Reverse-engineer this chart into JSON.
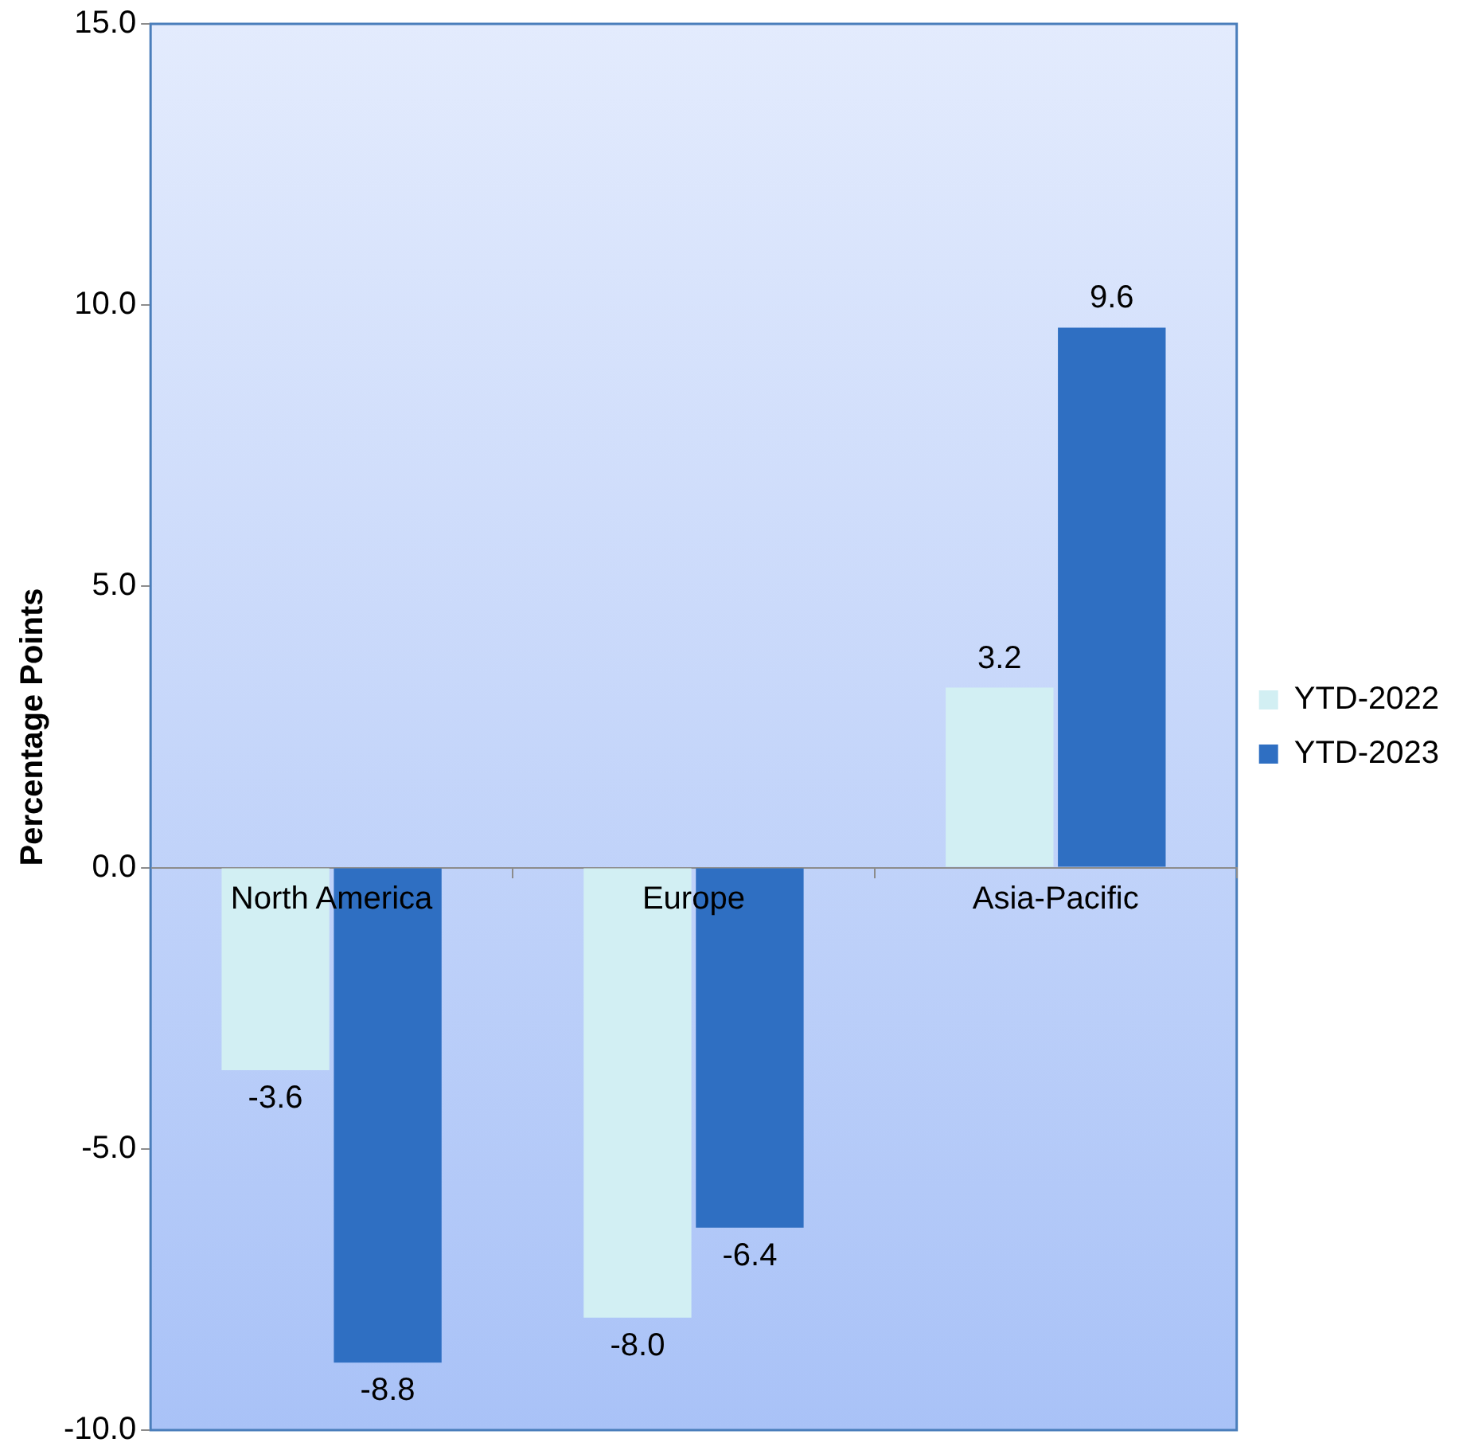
{
  "chart_data": {
    "type": "bar",
    "ylabel": "Percentage Points",
    "categories": [
      "North America",
      "Europe",
      "Asia-Pacific"
    ],
    "series": [
      {
        "name": "YTD-2022",
        "color": "#d2eff3",
        "values": [
          -3.6,
          -8.0,
          3.2
        ],
        "value_labels": [
          "-3.6",
          "-8.0",
          "3.2"
        ]
      },
      {
        "name": "YTD-2023",
        "color": "#2f6fc2",
        "values": [
          -8.8,
          -6.4,
          9.6
        ],
        "value_labels": [
          "-8.8",
          "-6.4",
          "9.6"
        ]
      }
    ],
    "ylim": [
      -10,
      15
    ],
    "yticks": [
      {
        "value": -10,
        "label": "-10.0"
      },
      {
        "value": -5,
        "label": "-5.0"
      },
      {
        "value": 0,
        "label": "0.0"
      },
      {
        "value": 5,
        "label": "5.0"
      },
      {
        "value": 10,
        "label": "10.0"
      },
      {
        "value": 15,
        "label": "15.0"
      }
    ],
    "grid": false,
    "legend": "right"
  }
}
